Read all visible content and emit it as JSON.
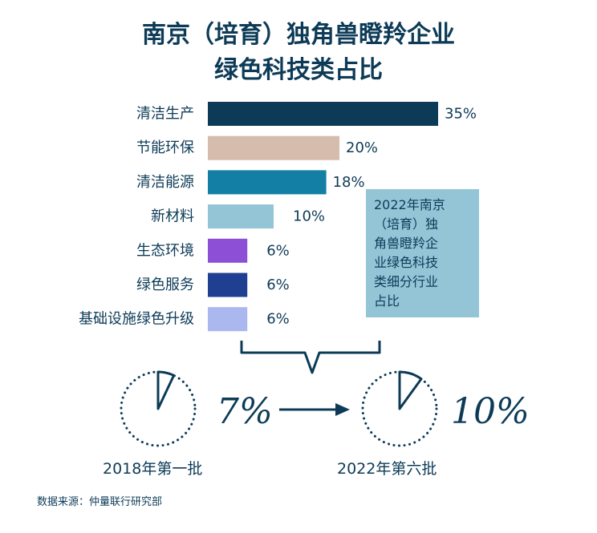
{
  "chart_data": {
    "type": "bar",
    "orientation": "horizontal",
    "title_lines": [
      "南京（培育）独角兽瞪羚企业",
      "绿色科技类占比"
    ],
    "categories": [
      "清洁生产",
      "节能环保",
      "清洁能源",
      "新材料",
      "生态环境",
      "绿色服务",
      "基础设施绿色升级"
    ],
    "values": [
      35,
      20,
      18,
      10,
      6,
      6,
      6
    ],
    "value_labels": [
      "35%",
      "20%",
      "18%",
      "10%",
      "6%",
      "6%",
      "6%"
    ],
    "colors": [
      "#0d3b57",
      "#d6bcad",
      "#137fa4",
      "#93c5d7",
      "#8c4fd6",
      "#1f3f91",
      "#aab8ef"
    ],
    "note_lines": [
      "2022年南京",
      "（培育）独",
      "角兽瞪羚企",
      "业绿色科技",
      "类细分行业",
      "占比"
    ],
    "comparison": {
      "from": {
        "label": "2018年第一批",
        "value": 7,
        "text": "7%"
      },
      "to": {
        "label": "2022年第六批",
        "value": 10,
        "text": "10%"
      }
    }
  },
  "source": "数据来源：仲量联行研究部"
}
